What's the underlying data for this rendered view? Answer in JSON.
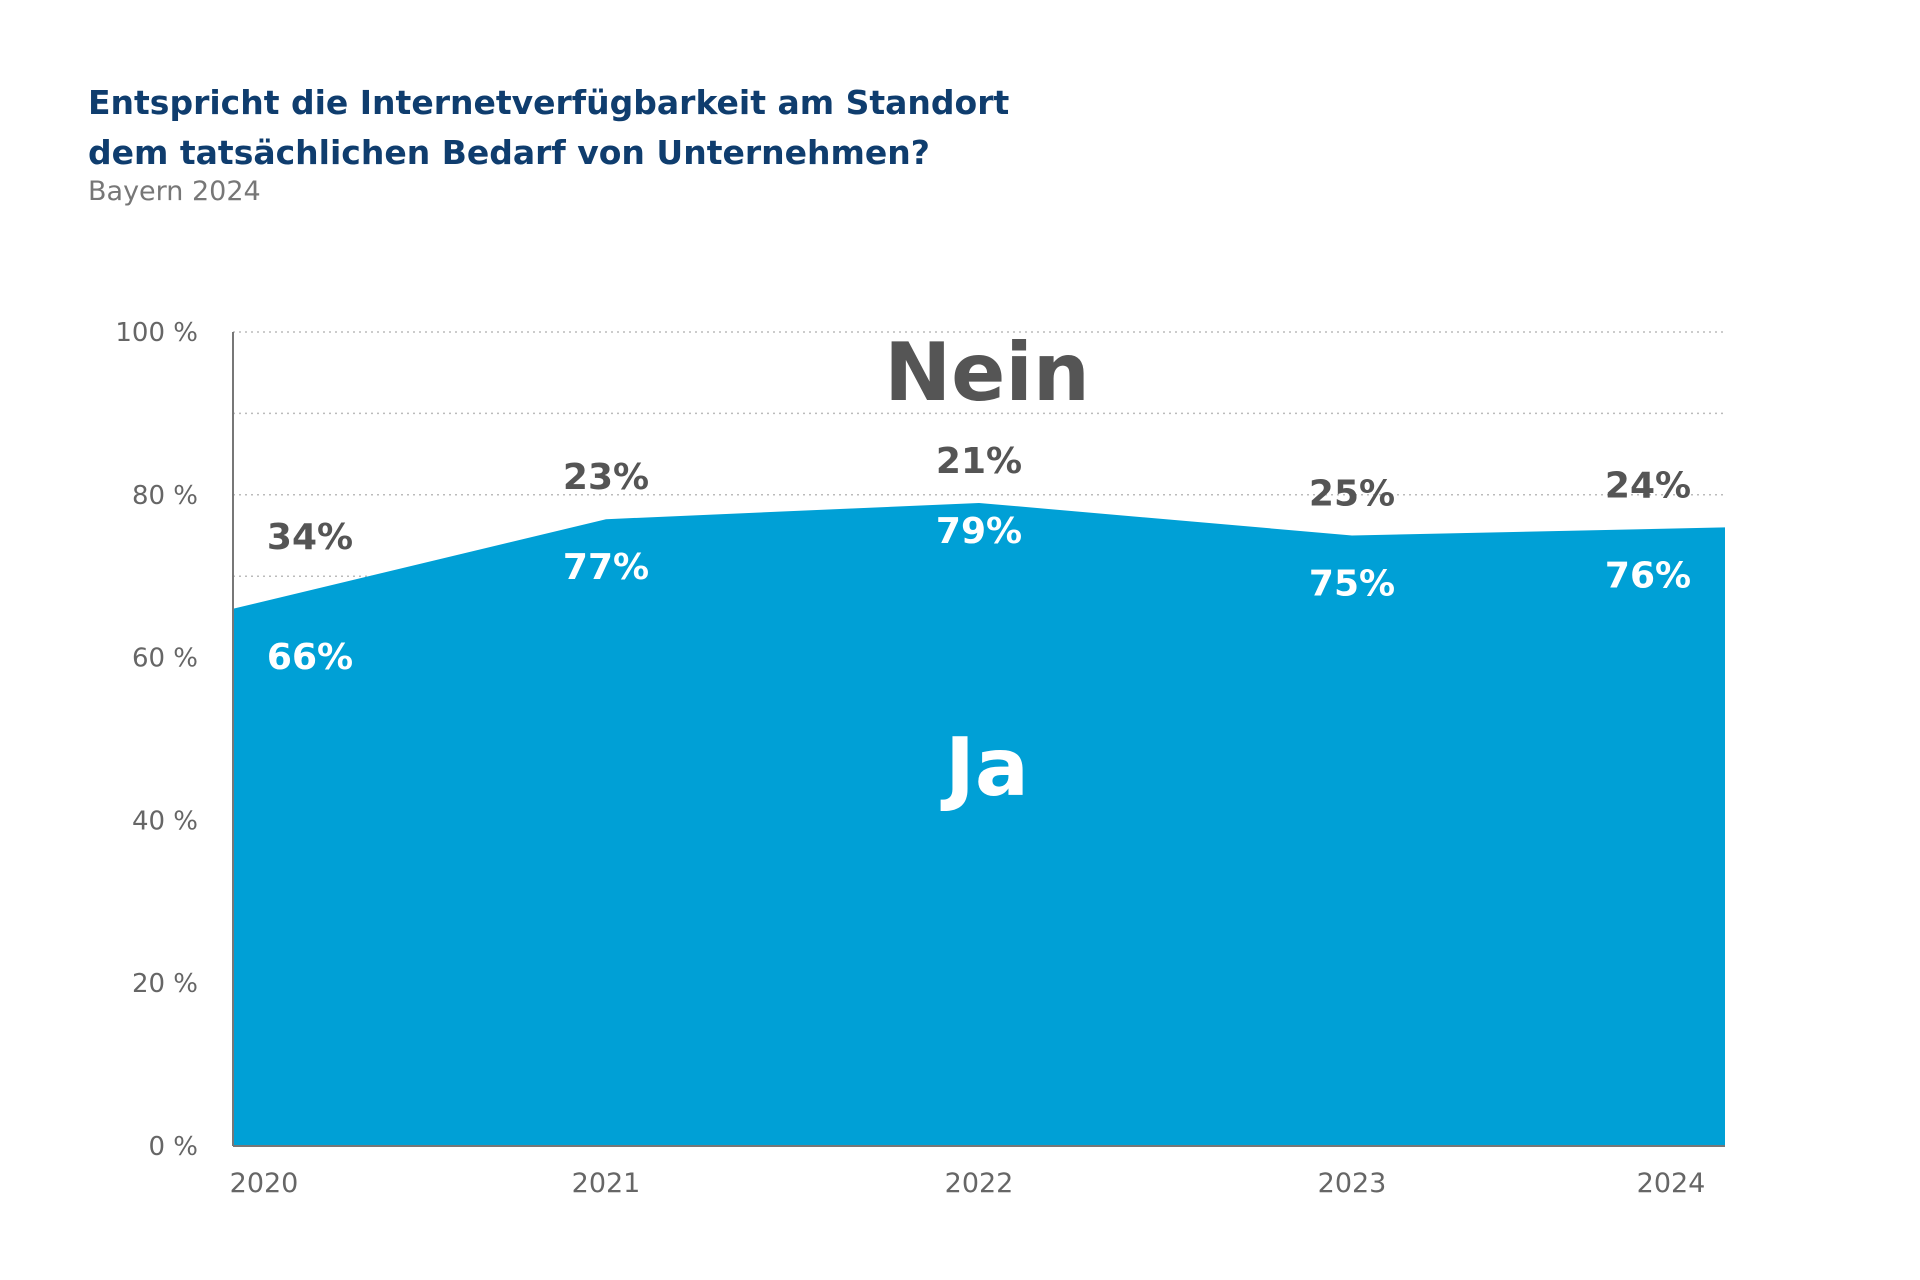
{
  "header": {
    "title": "Entspricht die Internetverfügbarkeit am Standort dem tatsächlichen Bedarf von Unternehmen?",
    "subtitle": "Bayern 2024"
  },
  "colors": {
    "ja_area": "#00a0d6",
    "title": "#0f3d6e",
    "text_dark": "#555555",
    "axis_text": "#666666",
    "grid": "#bbbbbb"
  },
  "chart_data": {
    "type": "area",
    "x": [
      "2020",
      "2021",
      "2022",
      "2023",
      "2024"
    ],
    "series": [
      {
        "name": "Ja",
        "values": [
          66,
          77,
          79,
          75,
          76
        ],
        "labels": [
          "66%",
          "77%",
          "79%",
          "75%",
          "76%"
        ]
      },
      {
        "name": "Nein",
        "values": [
          34,
          23,
          21,
          25,
          24
        ],
        "labels": [
          "34%",
          "23%",
          "21%",
          "25%",
          "24%"
        ]
      }
    ],
    "ylim": [
      0,
      100
    ],
    "y_ticks": [
      "0 %",
      "20 %",
      "40 %",
      "60 %",
      "80 %",
      "100 %"
    ],
    "y_tick_values": [
      0,
      20,
      40,
      60,
      80,
      100
    ],
    "grid": true,
    "stacked": true,
    "area_titles": {
      "nein": "Nein",
      "ja": "Ja"
    }
  }
}
